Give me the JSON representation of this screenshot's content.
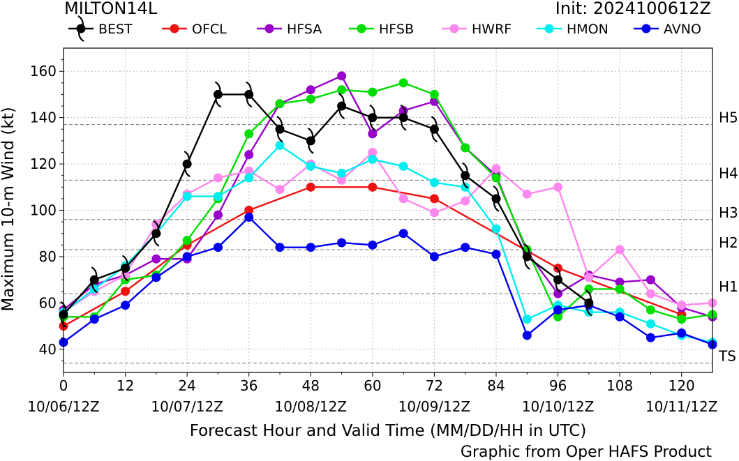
{
  "header": {
    "storm_name": "MILTON14L",
    "init_label": "Init: 2024100612Z"
  },
  "footer": {
    "credit": "Graphic from Oper HAFS Product"
  },
  "chart_data": {
    "type": "line",
    "xlabel": "Forecast Hour and Valid Time (MM/DD/HH in UTC)",
    "ylabel": "Maximum 10-m Wind (kt)",
    "xlim": [
      0,
      126
    ],
    "ylim": [
      30,
      170
    ],
    "x_ticks": [
      0,
      12,
      24,
      36,
      48,
      60,
      72,
      84,
      96,
      108,
      120
    ],
    "x_date_ticks": [
      {
        "x": 0,
        "label": "10/06/12Z"
      },
      {
        "x": 24,
        "label": "10/07/12Z"
      },
      {
        "x": 48,
        "label": "10/08/12Z"
      },
      {
        "x": 72,
        "label": "10/09/12Z"
      },
      {
        "x": 96,
        "label": "10/10/12Z"
      },
      {
        "x": 120,
        "label": "10/11/12Z"
      }
    ],
    "y_ticks": [
      40,
      60,
      80,
      100,
      120,
      140,
      160
    ],
    "grid": true,
    "legend_position": "top",
    "intensity_thresholds": [
      {
        "label": "TS",
        "value": 34
      },
      {
        "label": "H1",
        "value": 64
      },
      {
        "label": "H2",
        "value": 83
      },
      {
        "label": "H3",
        "value": 96
      },
      {
        "label": "H4",
        "value": 113
      },
      {
        "label": "H5",
        "value": 137
      }
    ],
    "series": [
      {
        "name": "BEST",
        "color": "#000000",
        "marker": "hurricane-symbol",
        "x": [
          0,
          6,
          12,
          18,
          24,
          30,
          36,
          42,
          48,
          54,
          60,
          66,
          72,
          78,
          84,
          90,
          96,
          102
        ],
        "y": [
          55,
          70,
          75,
          90,
          120,
          150,
          150,
          135,
          130,
          145,
          140,
          140,
          135,
          115,
          105,
          80,
          70,
          60
        ]
      },
      {
        "name": "OFCL",
        "color": "#ee1111",
        "marker": "circle",
        "x": [
          0,
          12,
          24,
          36,
          48,
          60,
          72,
          96,
          120
        ],
        "y": [
          50,
          65,
          85,
          100,
          110,
          110,
          105,
          75,
          55
        ]
      },
      {
        "name": "HFSA",
        "color": "#9900cc",
        "marker": "circle",
        "x": [
          0,
          6,
          12,
          18,
          24,
          30,
          36,
          42,
          48,
          54,
          60,
          66,
          72,
          78,
          84,
          90,
          96,
          102,
          108,
          114,
          120,
          126
        ],
        "y": [
          57,
          68,
          72,
          79,
          79,
          98,
          124,
          146,
          152,
          158,
          133,
          143,
          147,
          127,
          115,
          82,
          64,
          72,
          69,
          70,
          58,
          54
        ]
      },
      {
        "name": "HFSB",
        "color": "#00dd00",
        "marker": "circle",
        "x": [
          0,
          6,
          12,
          18,
          24,
          30,
          36,
          42,
          48,
          54,
          60,
          66,
          72,
          78,
          84,
          90,
          96,
          102,
          108,
          114,
          120,
          126
        ],
        "y": [
          54,
          54,
          70,
          72,
          87,
          105,
          133,
          146,
          148,
          152,
          151,
          155,
          150,
          127,
          114,
          83,
          54,
          66,
          66,
          57,
          53,
          55
        ]
      },
      {
        "name": "HWRF",
        "color": "#ff88ee",
        "marker": "circle",
        "x": [
          0,
          6,
          12,
          18,
          24,
          30,
          36,
          42,
          48,
          54,
          60,
          66,
          72,
          78,
          84,
          90,
          96,
          102,
          108,
          114,
          120,
          126
        ],
        "y": [
          56,
          65,
          72,
          94,
          107,
          114,
          117,
          109,
          120,
          113,
          125,
          105,
          99,
          104,
          118,
          107,
          110,
          71,
          83,
          64,
          59,
          60
        ]
      },
      {
        "name": "HMON",
        "color": "#00eeee",
        "marker": "circle",
        "x": [
          0,
          6,
          12,
          18,
          24,
          30,
          36,
          42,
          48,
          54,
          60,
          66,
          72,
          78,
          84,
          90,
          96,
          102,
          108,
          114,
          120,
          126
        ],
        "y": [
          56,
          66,
          76,
          90,
          106,
          106,
          114,
          128,
          119,
          116,
          122,
          119,
          112,
          110,
          92,
          53,
          59,
          56,
          56,
          51,
          46,
          43
        ]
      },
      {
        "name": "AVNO",
        "color": "#0000ee",
        "marker": "circle",
        "x": [
          0,
          6,
          12,
          18,
          24,
          30,
          36,
          42,
          48,
          54,
          60,
          66,
          72,
          78,
          84,
          90,
          96,
          102,
          108,
          114,
          120,
          126
        ],
        "y": [
          43,
          53,
          59,
          71,
          80,
          84,
          97,
          84,
          84,
          86,
          85,
          90,
          80,
          84,
          81,
          46,
          57,
          59,
          54,
          45,
          47,
          42
        ]
      }
    ]
  }
}
